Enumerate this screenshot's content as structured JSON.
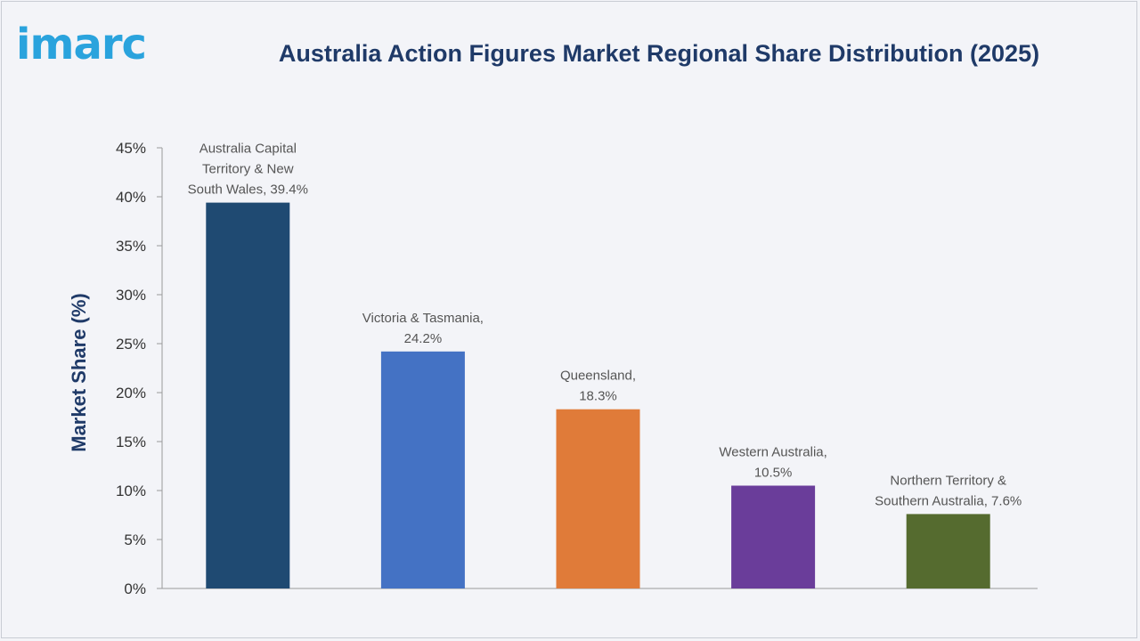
{
  "brand": {
    "logo_text": "imarc",
    "logo_color": "#2aa3dd"
  },
  "chart_data": {
    "type": "bar",
    "title": "Australia Action Figures Market Regional Share Distribution (2025)",
    "xlabel": "",
    "ylabel": "Market Share (%)",
    "ylim": [
      0,
      45
    ],
    "yticks": [
      "0%",
      "5%",
      "10%",
      "15%",
      "20%",
      "25%",
      "30%",
      "35%",
      "40%",
      "45%"
    ],
    "grid": false,
    "categories": [
      "Australia Capital Territory & New South Wales",
      "Victoria & Tasmania",
      "Queensland",
      "Western Australia",
      "Northern Territory & Southern Australia"
    ],
    "values": [
      39.4,
      24.2,
      18.3,
      10.5,
      7.6
    ],
    "data_labels": [
      [
        "Australia Capital",
        "Territory & New",
        "South Wales, 39.4%"
      ],
      [
        "Victoria & Tasmania,",
        "24.2%"
      ],
      [
        "Queensland,",
        "18.3%"
      ],
      [
        "Western Australia,",
        "10.5%"
      ],
      [
        "Northern Territory &",
        "Southern Australia, 7.6%"
      ]
    ],
    "colors": [
      "#1f4a72",
      "#4472c4",
      "#e07b39",
      "#6a3d9a",
      "#556b2f"
    ]
  }
}
